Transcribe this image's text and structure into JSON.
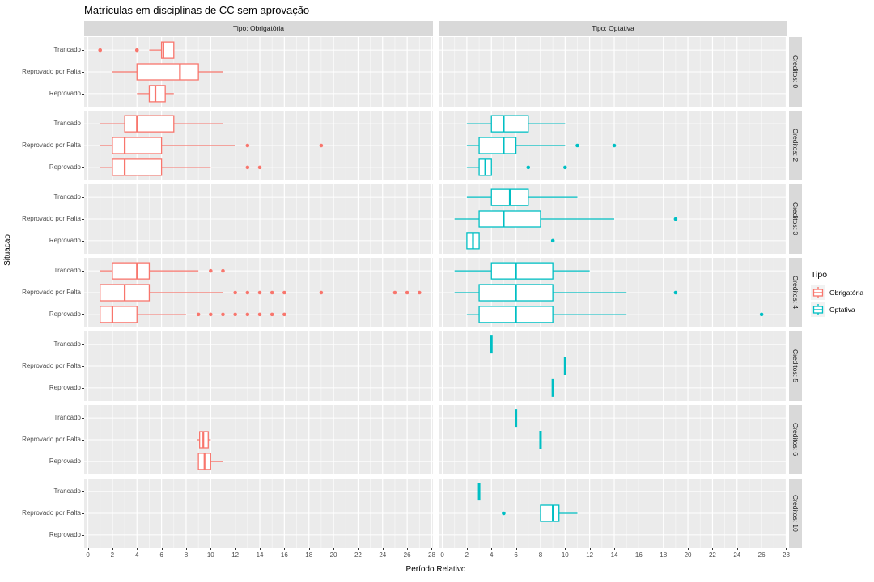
{
  "title": "Matrículas em disciplinas de CC sem aprovação",
  "colors": {
    "obrigatoria": "#F8766D",
    "optativa": "#00BFC4",
    "panel_bg": "#EBEBEB",
    "strip_bg": "#D9D9D9",
    "grid": "#FFFFFF",
    "tick_text": "#4D4D4D",
    "box_fill": "#FFFFFF"
  },
  "legend": {
    "title": "Tipo",
    "items": [
      {
        "label": "Obrigatória",
        "color": "#F8766D"
      },
      {
        "label": "Optativa",
        "color": "#00BFC4"
      }
    ]
  },
  "chart_data": {
    "type": "boxplot",
    "title": "Matrículas em disciplinas de CC sem aprovação",
    "xlabel": "Período Relativo",
    "ylabel": "Situacao",
    "x_ticks": [
      0,
      2,
      4,
      6,
      8,
      10,
      12,
      14,
      16,
      18,
      20,
      22,
      24,
      26,
      28
    ],
    "x_domain": [
      -0.3,
      28.1
    ],
    "grid": "on",
    "legend_position": "right",
    "col_facets": [
      "Tipo: Obrigatória",
      "Tipo: Optativa"
    ],
    "row_facets": [
      "Creditos: 0",
      "Creditos: 2",
      "Creditos: 3",
      "Creditos: 4",
      "Creditos: 5",
      "Creditos: 6",
      "Creditos: 10"
    ],
    "categories": [
      "Trancado",
      "Reprovado por Falta",
      "Reprovado"
    ],
    "boxes": [
      {
        "row": 0,
        "col": 0,
        "cat": 0,
        "v": [
          5,
          6,
          6.15,
          7,
          7
        ],
        "outliers": [
          1,
          4
        ]
      },
      {
        "row": 0,
        "col": 0,
        "cat": 1,
        "v": [
          2,
          4,
          7.5,
          9,
          11
        ],
        "outliers": []
      },
      {
        "row": 0,
        "col": 0,
        "cat": 2,
        "v": [
          4,
          5,
          5.5,
          6.3,
          7
        ],
        "outliers": []
      },
      {
        "row": 1,
        "col": 0,
        "cat": 0,
        "v": [
          1,
          3,
          4,
          7,
          11
        ],
        "outliers": []
      },
      {
        "row": 1,
        "col": 0,
        "cat": 1,
        "v": [
          1,
          2,
          3,
          6,
          12
        ],
        "outliers": [
          13,
          19
        ]
      },
      {
        "row": 1,
        "col": 0,
        "cat": 2,
        "v": [
          1,
          2,
          3,
          6,
          10
        ],
        "outliers": [
          13,
          14
        ]
      },
      {
        "row": 1,
        "col": 1,
        "cat": 0,
        "v": [
          2,
          4,
          5,
          7,
          10
        ],
        "outliers": []
      },
      {
        "row": 1,
        "col": 1,
        "cat": 1,
        "v": [
          2,
          3,
          5,
          6,
          10
        ],
        "outliers": [
          11,
          14
        ]
      },
      {
        "row": 1,
        "col": 1,
        "cat": 2,
        "v": [
          2,
          3,
          3.5,
          4,
          4
        ],
        "outliers": [
          7,
          10
        ]
      },
      {
        "row": 2,
        "col": 1,
        "cat": 0,
        "v": [
          2,
          4,
          5.5,
          7,
          11
        ],
        "outliers": []
      },
      {
        "row": 2,
        "col": 1,
        "cat": 1,
        "v": [
          1,
          3,
          5,
          8,
          14
        ],
        "outliers": [
          19
        ]
      },
      {
        "row": 2,
        "col": 1,
        "cat": 2,
        "v": [
          2,
          2,
          2.5,
          3,
          3
        ],
        "outliers": [
          9
        ]
      },
      {
        "row": 3,
        "col": 0,
        "cat": 0,
        "v": [
          1,
          2,
          4,
          5,
          9
        ],
        "outliers": [
          10,
          11
        ]
      },
      {
        "row": 3,
        "col": 0,
        "cat": 1,
        "v": [
          1,
          1,
          3,
          5,
          11
        ],
        "outliers": [
          12,
          13,
          14,
          15,
          16,
          19,
          25,
          26,
          27
        ]
      },
      {
        "row": 3,
        "col": 0,
        "cat": 2,
        "v": [
          1,
          1,
          2,
          4,
          8
        ],
        "outliers": [
          9,
          10,
          11,
          12,
          13,
          14,
          15,
          16
        ]
      },
      {
        "row": 3,
        "col": 1,
        "cat": 0,
        "v": [
          1,
          4,
          6,
          9,
          12
        ],
        "outliers": []
      },
      {
        "row": 3,
        "col": 1,
        "cat": 1,
        "v": [
          1,
          3,
          6,
          9,
          15
        ],
        "outliers": [
          19
        ]
      },
      {
        "row": 3,
        "col": 1,
        "cat": 2,
        "v": [
          2,
          3,
          6,
          9,
          15
        ],
        "outliers": [
          26
        ]
      },
      {
        "row": 4,
        "col": 1,
        "cat": 0,
        "v": [
          4,
          4,
          4,
          4,
          4
        ],
        "outliers": []
      },
      {
        "row": 4,
        "col": 1,
        "cat": 1,
        "v": [
          10,
          10,
          10,
          10,
          10
        ],
        "outliers": []
      },
      {
        "row": 4,
        "col": 1,
        "cat": 2,
        "v": [
          9,
          9,
          9,
          9,
          9
        ],
        "outliers": []
      },
      {
        "row": 5,
        "col": 0,
        "cat": 1,
        "v": [
          8.9,
          9.1,
          9.4,
          9.8,
          10
        ],
        "outliers": []
      },
      {
        "row": 5,
        "col": 0,
        "cat": 2,
        "v": [
          9,
          9,
          9.5,
          10,
          11
        ],
        "outliers": []
      },
      {
        "row": 5,
        "col": 1,
        "cat": 0,
        "v": [
          6,
          6,
          6,
          6,
          6
        ],
        "outliers": []
      },
      {
        "row": 5,
        "col": 1,
        "cat": 1,
        "v": [
          8,
          8,
          8,
          8,
          8
        ],
        "outliers": []
      },
      {
        "row": 6,
        "col": 1,
        "cat": 0,
        "v": [
          3,
          3,
          3,
          3,
          3
        ],
        "outliers": []
      },
      {
        "row": 6,
        "col": 1,
        "cat": 1,
        "v": [
          8,
          8,
          9,
          9.5,
          11
        ],
        "outliers": [
          5
        ]
      }
    ]
  }
}
